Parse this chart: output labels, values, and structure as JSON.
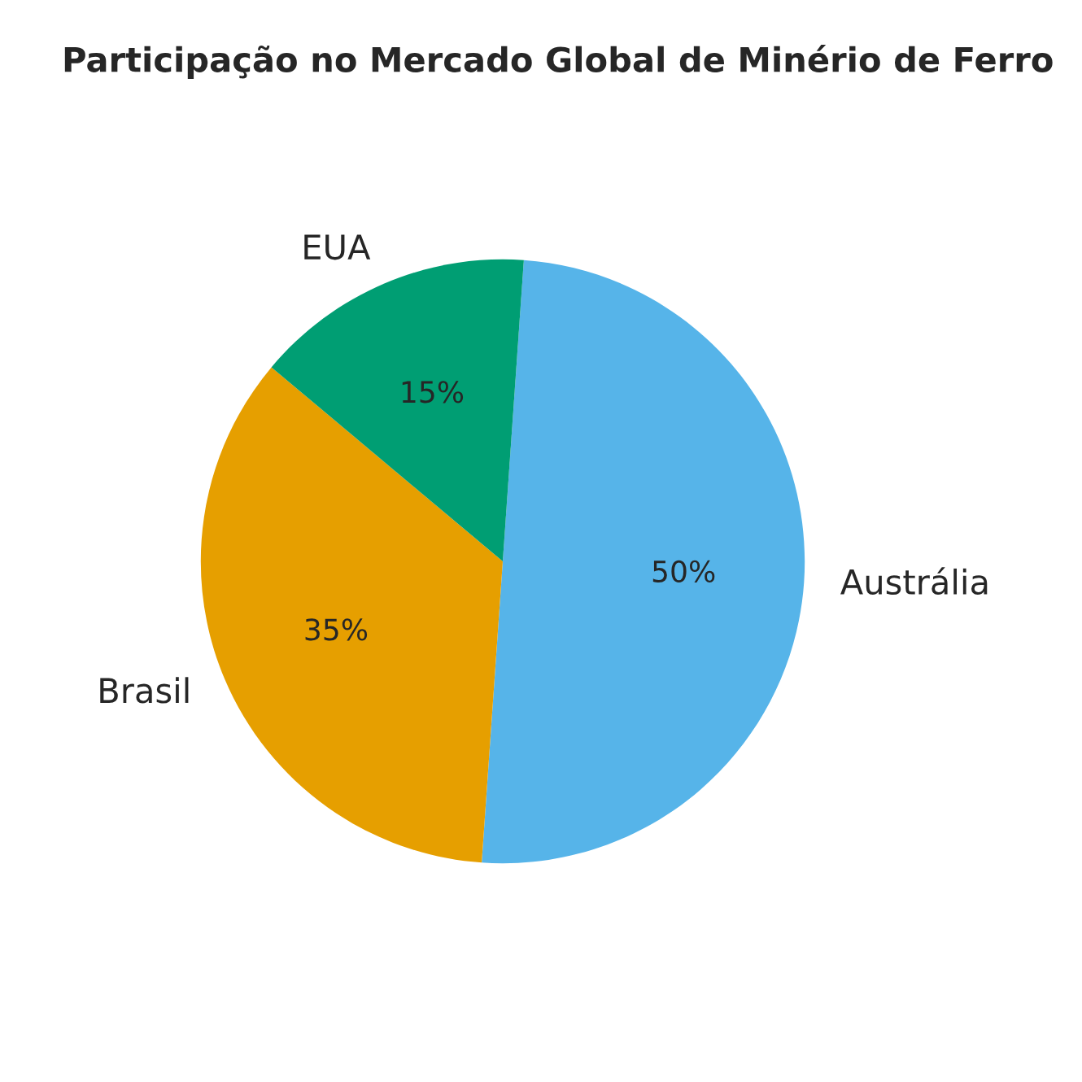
{
  "chart_data": {
    "type": "pie",
    "title": "Participação no Mercado Global de Minério de Ferro",
    "categories": [
      "Austrália",
      "Brasil",
      "EUA"
    ],
    "values": [
      50,
      35,
      15
    ],
    "colors": [
      "#56b4e9",
      "#e69f00",
      "#009e73"
    ],
    "value_labels": [
      "50%",
      "35%",
      "15%"
    ]
  }
}
